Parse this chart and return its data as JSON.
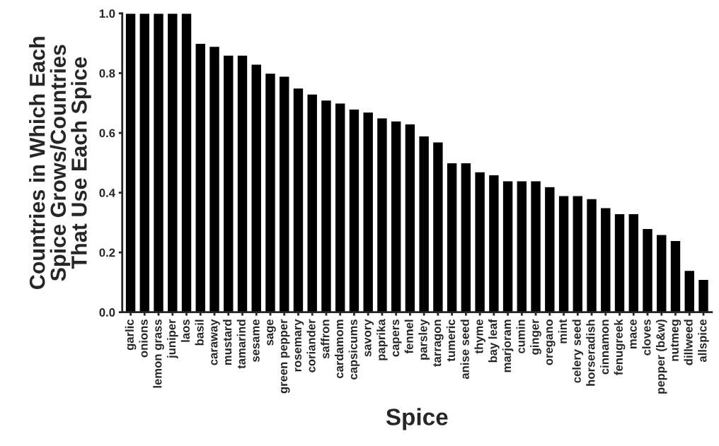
{
  "chart_data": {
    "type": "bar",
    "xlabel": "Spice",
    "ylabel": "Countries in Which Each\nSpice Grows/Countries\nThat Use Each Spice",
    "categories": [
      "garlic",
      "onions",
      "lemon grass",
      "juniper",
      "laos",
      "basil",
      "caraway",
      "mustard",
      "tamarind",
      "sesame",
      "sage",
      "green pepper",
      "rosemary",
      "coriander",
      "saffron",
      "cardamom",
      "capsicums",
      "savory",
      "paprika",
      "capers",
      "fennel",
      "parsley",
      "tarragon",
      "tumeric",
      "anise seed",
      "thyme",
      "bay leaf",
      "marjoram",
      "cumin",
      "ginger",
      "oregano",
      "mint",
      "celery seed",
      "horseradish",
      "cinnamon",
      "fenugreek",
      "mace",
      "cloves",
      "pepper (b&w)",
      "nutmeg",
      "dillweed",
      "allspice"
    ],
    "values": [
      1.0,
      1.0,
      1.0,
      1.0,
      1.0,
      0.9,
      0.89,
      0.86,
      0.86,
      0.83,
      0.8,
      0.79,
      0.75,
      0.73,
      0.71,
      0.7,
      0.68,
      0.67,
      0.65,
      0.64,
      0.63,
      0.59,
      0.57,
      0.5,
      0.5,
      0.47,
      0.46,
      0.44,
      0.44,
      0.44,
      0.42,
      0.39,
      0.39,
      0.38,
      0.35,
      0.33,
      0.33,
      0.28,
      0.26,
      0.24,
      0.14,
      0.11
    ],
    "color": "#000000",
    "ylim": [
      0,
      1
    ],
    "yticks": [
      {
        "value": 0,
        "label": "0.0"
      },
      {
        "value": 0.2,
        "label": "0.2"
      },
      {
        "value": 0.4,
        "label": "0.4"
      },
      {
        "value": 0.6,
        "label": "0.6"
      },
      {
        "value": 0.8,
        "label": "0.8"
      },
      {
        "value": 1,
        "label": "1.0"
      }
    ],
    "grid": false
  }
}
